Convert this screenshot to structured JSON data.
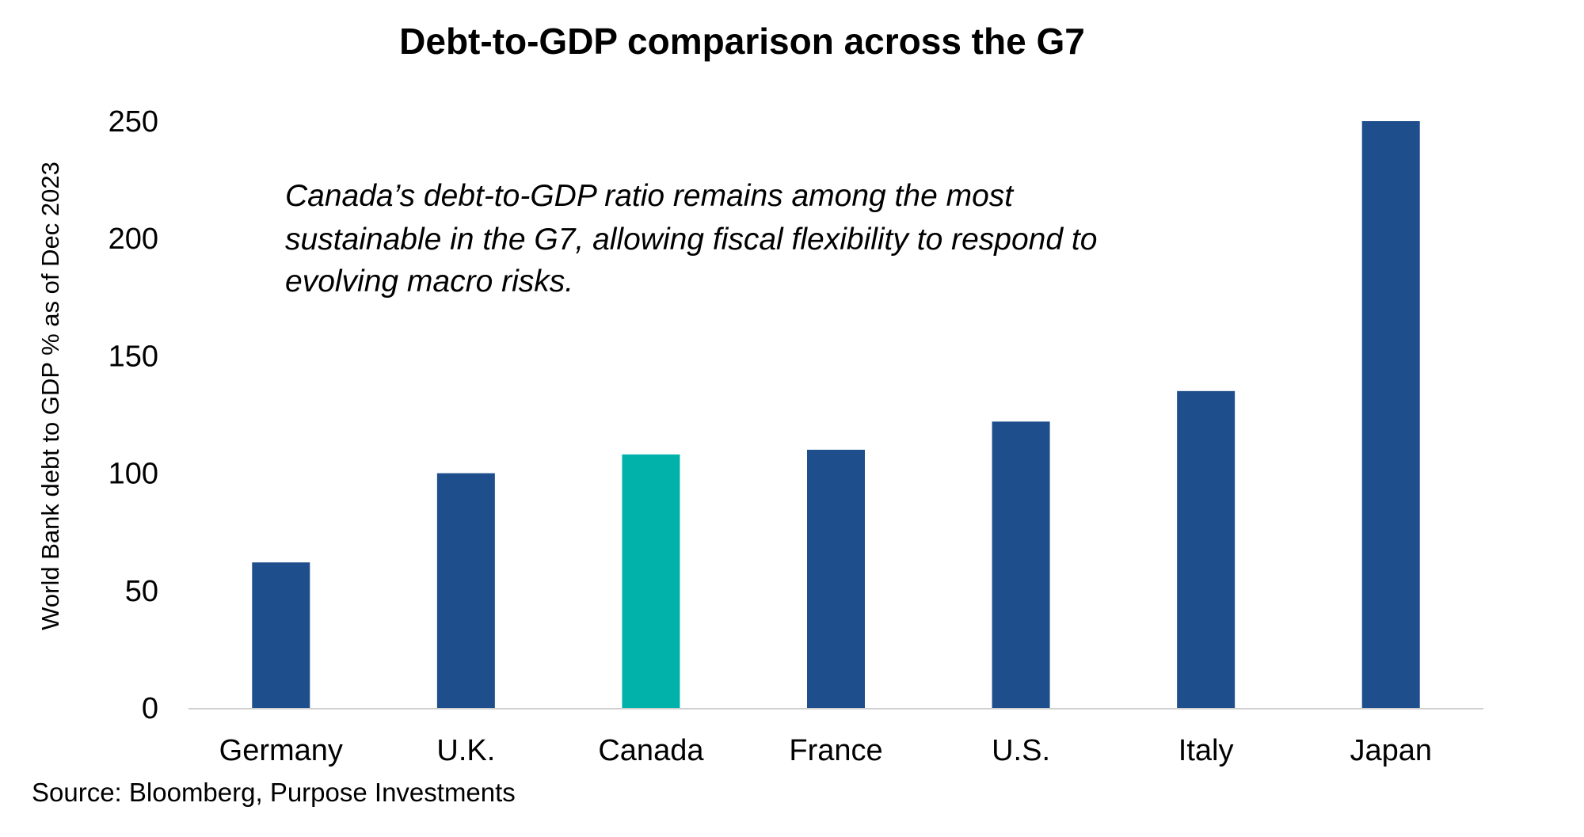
{
  "chart_data": {
    "type": "bar",
    "title": "Debt-to-GDP comparison across the G7",
    "xlabel": "",
    "ylabel": "World Bank debt to GDP % as of Dec 2023",
    "categories": [
      "Germany",
      "U.K.",
      "Canada",
      "France",
      "U.S.",
      "Italy",
      "Japan"
    ],
    "values": [
      62,
      100,
      108,
      110,
      122,
      135,
      250
    ],
    "ylim": [
      0,
      250
    ],
    "yticks": [
      0,
      50,
      100,
      150,
      200,
      250
    ],
    "grid": false,
    "colors": {
      "default": "#1F4E8C",
      "highlight": "#00B2A9",
      "highlight_category": "Canada"
    },
    "annotation": [
      "Canada’s debt-to-GDP ratio remains among the most",
      "sustainable in the G7, allowing fiscal flexibility to respond to",
      "evolving macro risks."
    ],
    "source": "Source: Bloomberg, Purpose Investments"
  }
}
